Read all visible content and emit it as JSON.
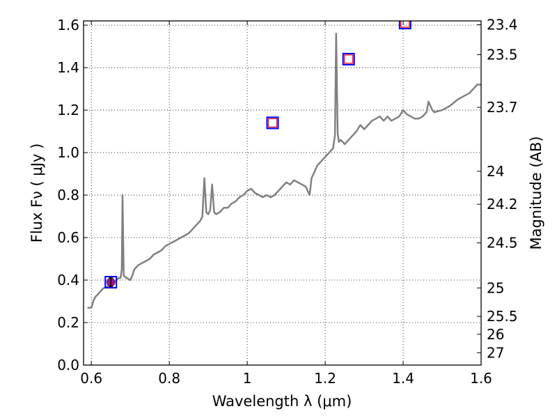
{
  "chart_data": {
    "type": "line",
    "title": "",
    "xlabel": "Wavelength  λ (μm)",
    "ylabel": "Flux  Fν  ( μJy )",
    "ylabel_right": "Magnitude (AB)",
    "xlim": [
      0.58,
      1.6
    ],
    "ylim": [
      0.0,
      1.62
    ],
    "grid": true,
    "legend": "none",
    "x_ticks": [
      {
        "value": 0.6,
        "label": "0.6"
      },
      {
        "value": 0.8,
        "label": "0.8"
      },
      {
        "value": 1.0,
        "label": "1"
      },
      {
        "value": 1.2,
        "label": "1.2"
      },
      {
        "value": 1.4,
        "label": "1.4"
      },
      {
        "value": 1.6,
        "label": "1.6"
      }
    ],
    "y_ticks": [
      {
        "value": 0.0,
        "label": "0.0"
      },
      {
        "value": 0.2,
        "label": "0.2"
      },
      {
        "value": 0.4,
        "label": "0.4"
      },
      {
        "value": 0.6,
        "label": "0.6"
      },
      {
        "value": 0.8,
        "label": "0.8"
      },
      {
        "value": 1.0,
        "label": "1.0"
      },
      {
        "value": 1.2,
        "label": "1.2"
      },
      {
        "value": 1.4,
        "label": "1.4"
      },
      {
        "value": 1.6,
        "label": "1.6"
      }
    ],
    "right_ticks": [
      {
        "flux": 1.602,
        "label": "23.4"
      },
      {
        "flux": 1.461,
        "label": "23.5"
      },
      {
        "flux": 1.213,
        "label": "23.7"
      },
      {
        "flux": 0.912,
        "label": "24"
      },
      {
        "flux": 0.757,
        "label": "24.2"
      },
      {
        "flux": 0.575,
        "label": "24.5"
      },
      {
        "flux": 0.363,
        "label": "25"
      },
      {
        "flux": 0.229,
        "label": "25.5"
      },
      {
        "flux": 0.145,
        "label": "26"
      },
      {
        "flux": 0.058,
        "label": "27"
      }
    ],
    "series": [
      {
        "color": "#808080",
        "x": [
          0.59,
          0.6,
          0.605,
          0.61,
          0.62,
          0.63,
          0.64,
          0.65,
          0.66,
          0.665,
          0.67,
          0.675,
          0.678,
          0.68,
          0.683,
          0.69,
          0.7,
          0.705,
          0.71,
          0.72,
          0.73,
          0.74,
          0.75,
          0.76,
          0.77,
          0.78,
          0.79,
          0.8,
          0.81,
          0.82,
          0.83,
          0.84,
          0.85,
          0.86,
          0.87,
          0.88,
          0.885,
          0.89,
          0.895,
          0.9,
          0.905,
          0.91,
          0.915,
          0.92,
          0.93,
          0.94,
          0.95,
          0.96,
          0.97,
          0.98,
          0.99,
          1.0,
          1.01,
          1.02,
          1.03,
          1.04,
          1.05,
          1.06,
          1.07,
          1.08,
          1.09,
          1.1,
          1.11,
          1.12,
          1.13,
          1.14,
          1.15,
          1.16,
          1.165,
          1.17,
          1.18,
          1.19,
          1.2,
          1.21,
          1.22,
          1.225,
          1.228,
          1.232,
          1.235,
          1.24,
          1.25,
          1.26,
          1.27,
          1.28,
          1.29,
          1.3,
          1.31,
          1.32,
          1.33,
          1.34,
          1.35,
          1.36,
          1.37,
          1.38,
          1.39,
          1.4,
          1.405,
          1.41,
          1.42,
          1.43,
          1.44,
          1.45,
          1.46,
          1.465,
          1.47,
          1.475,
          1.48,
          1.5,
          1.52,
          1.54,
          1.56,
          1.57,
          1.58,
          1.59,
          1.6
        ],
        "y": [
          0.27,
          0.27,
          0.3,
          0.32,
          0.34,
          0.36,
          0.37,
          0.38,
          0.39,
          0.4,
          0.41,
          0.41,
          0.45,
          0.8,
          0.42,
          0.41,
          0.4,
          0.42,
          0.45,
          0.47,
          0.48,
          0.49,
          0.5,
          0.52,
          0.53,
          0.54,
          0.56,
          0.57,
          0.58,
          0.59,
          0.6,
          0.61,
          0.62,
          0.64,
          0.66,
          0.68,
          0.7,
          0.88,
          0.72,
          0.71,
          0.73,
          0.85,
          0.72,
          0.71,
          0.72,
          0.74,
          0.74,
          0.76,
          0.77,
          0.79,
          0.8,
          0.82,
          0.83,
          0.81,
          0.8,
          0.79,
          0.8,
          0.79,
          0.8,
          0.82,
          0.84,
          0.86,
          0.85,
          0.87,
          0.86,
          0.85,
          0.84,
          0.8,
          0.88,
          0.9,
          0.94,
          0.96,
          0.98,
          1.0,
          1.02,
          1.08,
          1.56,
          1.09,
          1.05,
          1.06,
          1.04,
          1.06,
          1.08,
          1.1,
          1.13,
          1.11,
          1.13,
          1.15,
          1.16,
          1.17,
          1.15,
          1.17,
          1.15,
          1.16,
          1.17,
          1.2,
          1.19,
          1.18,
          1.17,
          1.16,
          1.16,
          1.17,
          1.19,
          1.24,
          1.22,
          1.2,
          1.19,
          1.2,
          1.22,
          1.25,
          1.27,
          1.28,
          1.3,
          1.32,
          1.32
        ]
      }
    ],
    "markers": [
      {
        "x": 0.65,
        "y": 0.39,
        "style": "filled-circle-with-errorbar",
        "yerr": 0.02,
        "color": "#8b1a8b"
      },
      {
        "x": 1.065,
        "y": 1.14,
        "style": "open-square",
        "color": "#ff0000"
      },
      {
        "x": 1.26,
        "y": 1.44,
        "style": "open-square",
        "color": "#ff0000"
      },
      {
        "x": 1.405,
        "y": 1.61,
        "style": "open-square",
        "color": "#ff0000"
      }
    ],
    "colors": {
      "spectrum": "#808080",
      "marker_inner": "#ff0000",
      "marker_outer": "#0000ff",
      "marker_fill": "#8b1a8b",
      "grid": "#000000"
    }
  }
}
